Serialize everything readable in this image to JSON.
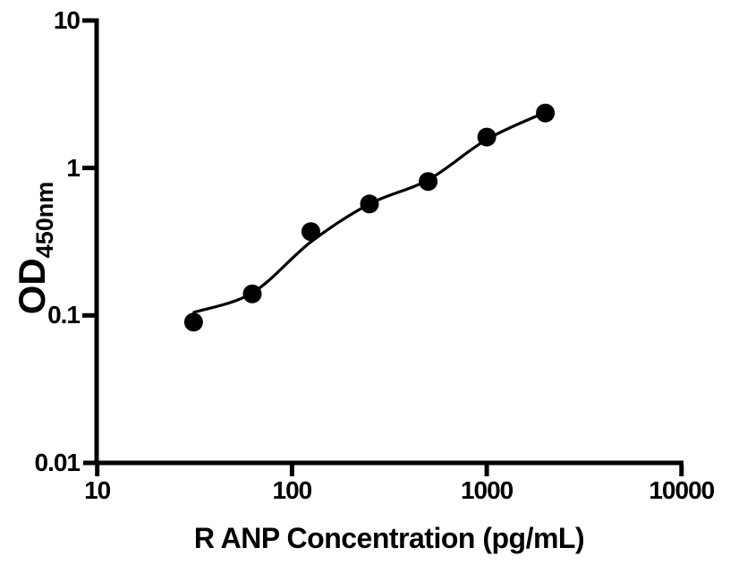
{
  "figure": {
    "background_color": "#ffffff",
    "foreground_color": "#000000"
  },
  "chart_data": {
    "type": "scatter",
    "title": "",
    "xlabel": "R ANP Concentration (pg/mL)",
    "ylabel": "OD450nm",
    "ylabel_main": "OD",
    "ylabel_subscript": "450nm",
    "x_scale": "log",
    "y_scale": "log",
    "xlim": [
      10,
      10000
    ],
    "ylim": [
      0.01,
      10
    ],
    "x_ticks": [
      10,
      100,
      1000,
      10000
    ],
    "x_tick_labels": [
      "10",
      "100",
      "1000",
      "10000"
    ],
    "y_ticks": [
      10,
      1,
      0.1,
      0.01
    ],
    "y_tick_labels": [
      "10",
      "1",
      "0.1",
      "0.01"
    ],
    "grid": false,
    "legend": null,
    "series": [
      {
        "name": "standard-points",
        "marker": "filled-circle",
        "color": "#000000",
        "points": [
          {
            "x": 31.25,
            "y": 0.09
          },
          {
            "x": 62.5,
            "y": 0.14
          },
          {
            "x": 125,
            "y": 0.37
          },
          {
            "x": 250,
            "y": 0.57
          },
          {
            "x": 500,
            "y": 0.81
          },
          {
            "x": 1000,
            "y": 1.62
          },
          {
            "x": 2000,
            "y": 2.36
          }
        ]
      }
    ],
    "fit_curve": {
      "name": "four-parameter-logistic-fit",
      "color": "#000000",
      "points": [
        {
          "x": 31.4,
          "y": 0.105
        },
        {
          "x": 62.5,
          "y": 0.142
        },
        {
          "x": 125,
          "y": 0.315
        },
        {
          "x": 250,
          "y": 0.57
        },
        {
          "x": 500,
          "y": 0.83
        },
        {
          "x": 1000,
          "y": 1.56
        },
        {
          "x": 1963,
          "y": 2.36
        }
      ]
    }
  }
}
